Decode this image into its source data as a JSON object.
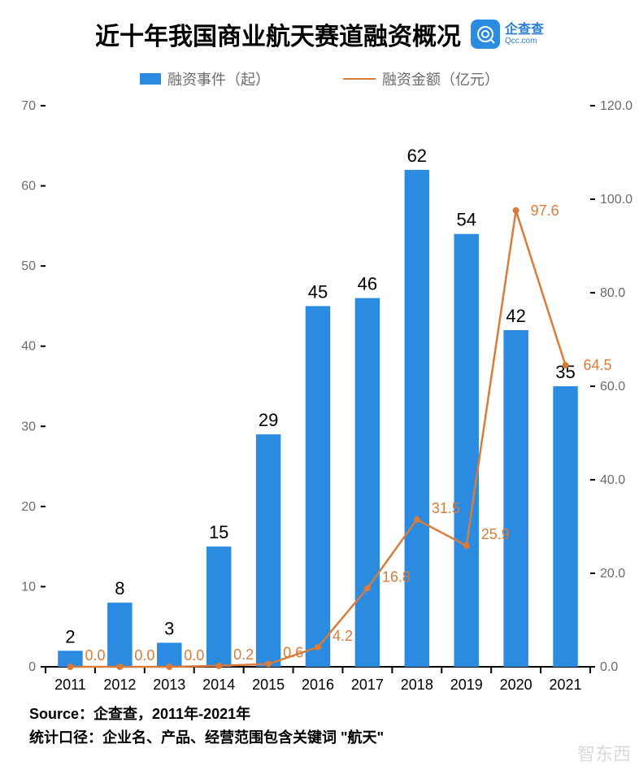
{
  "title": "近十年我国商业航天赛道融资概况",
  "brand": {
    "cn": "企查查",
    "en": "Qcc.com",
    "color": "#2a8be0"
  },
  "legend": {
    "bars": "融资事件（起）",
    "line": "融资金额（亿元）",
    "bar_color": "#2a8be0",
    "line_color": "#d97b3a"
  },
  "chart": {
    "type": "bar+line",
    "categories": [
      "2011",
      "2012",
      "2013",
      "2014",
      "2015",
      "2016",
      "2017",
      "2018",
      "2019",
      "2020",
      "2021"
    ],
    "bar_series": {
      "label": "融资事件（起）",
      "values": [
        2,
        8,
        3,
        15,
        29,
        45,
        46,
        62,
        54,
        42,
        35
      ],
      "color": "#2a8be0",
      "bar_width": 0.5
    },
    "line_series": {
      "label": "融资金额（亿元）",
      "values": [
        0.0,
        0.0,
        0.0,
        0.2,
        0.6,
        4.2,
        16.8,
        31.5,
        25.9,
        97.6,
        64.5
      ],
      "color": "#d97b3a",
      "line_width": 2.5,
      "marker": {
        "style": "circle",
        "size": 4,
        "color": "#d97b3a"
      }
    },
    "y_left": {
      "min": 0,
      "max": 70,
      "ticks": [
        0,
        10,
        20,
        30,
        40,
        50,
        60,
        70
      ]
    },
    "y_right": {
      "min": 0,
      "max": 120,
      "ticks": [
        0.0,
        20.0,
        40.0,
        60.0,
        80.0,
        100.0,
        120.0
      ]
    },
    "axis_color": "#000000",
    "tick_label_fontsize": 16,
    "value_label_fontsize": 18,
    "value_label_color_bar": "#000000",
    "value_label_color_line": "#d97b3a",
    "background": "#ffffff"
  },
  "source": {
    "line1": "Source：企查查，2011年-2021年",
    "line2": "统计口径：企业名、产品、经营范围包含关键词 \"航天\""
  },
  "watermark": "智东西"
}
